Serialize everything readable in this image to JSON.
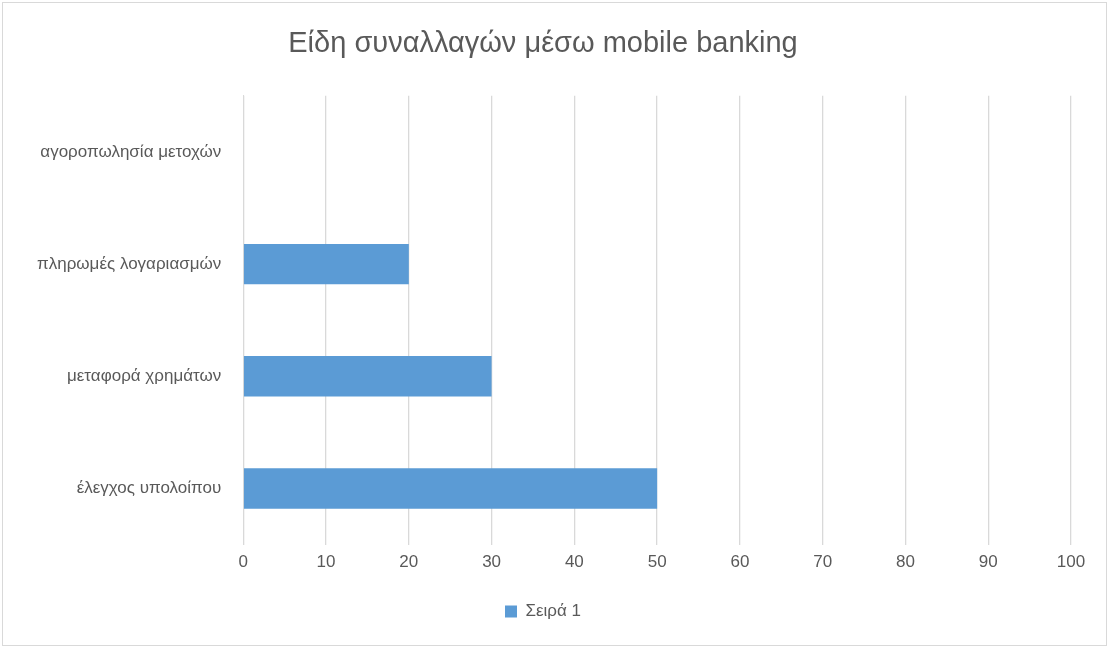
{
  "chart_data": {
    "type": "bar",
    "orientation": "horizontal",
    "title": "Είδη συναλλαγών μέσω mobile banking",
    "categories": [
      "αγοροπωλησία μετοχών",
      "πληρωμές λογαριασμών",
      "μεταφορά χρημάτων",
      "έλεγχος υπολοίπου"
    ],
    "series": [
      {
        "name": "Σειρά 1",
        "color": "#5b9bd5",
        "values": [
          0,
          20,
          30,
          50
        ]
      }
    ],
    "xlim": [
      0,
      100
    ],
    "xticks": [
      0,
      10,
      20,
      30,
      40,
      50,
      60,
      70,
      80,
      90,
      100
    ],
    "grid": "x",
    "legend": "bottom"
  }
}
